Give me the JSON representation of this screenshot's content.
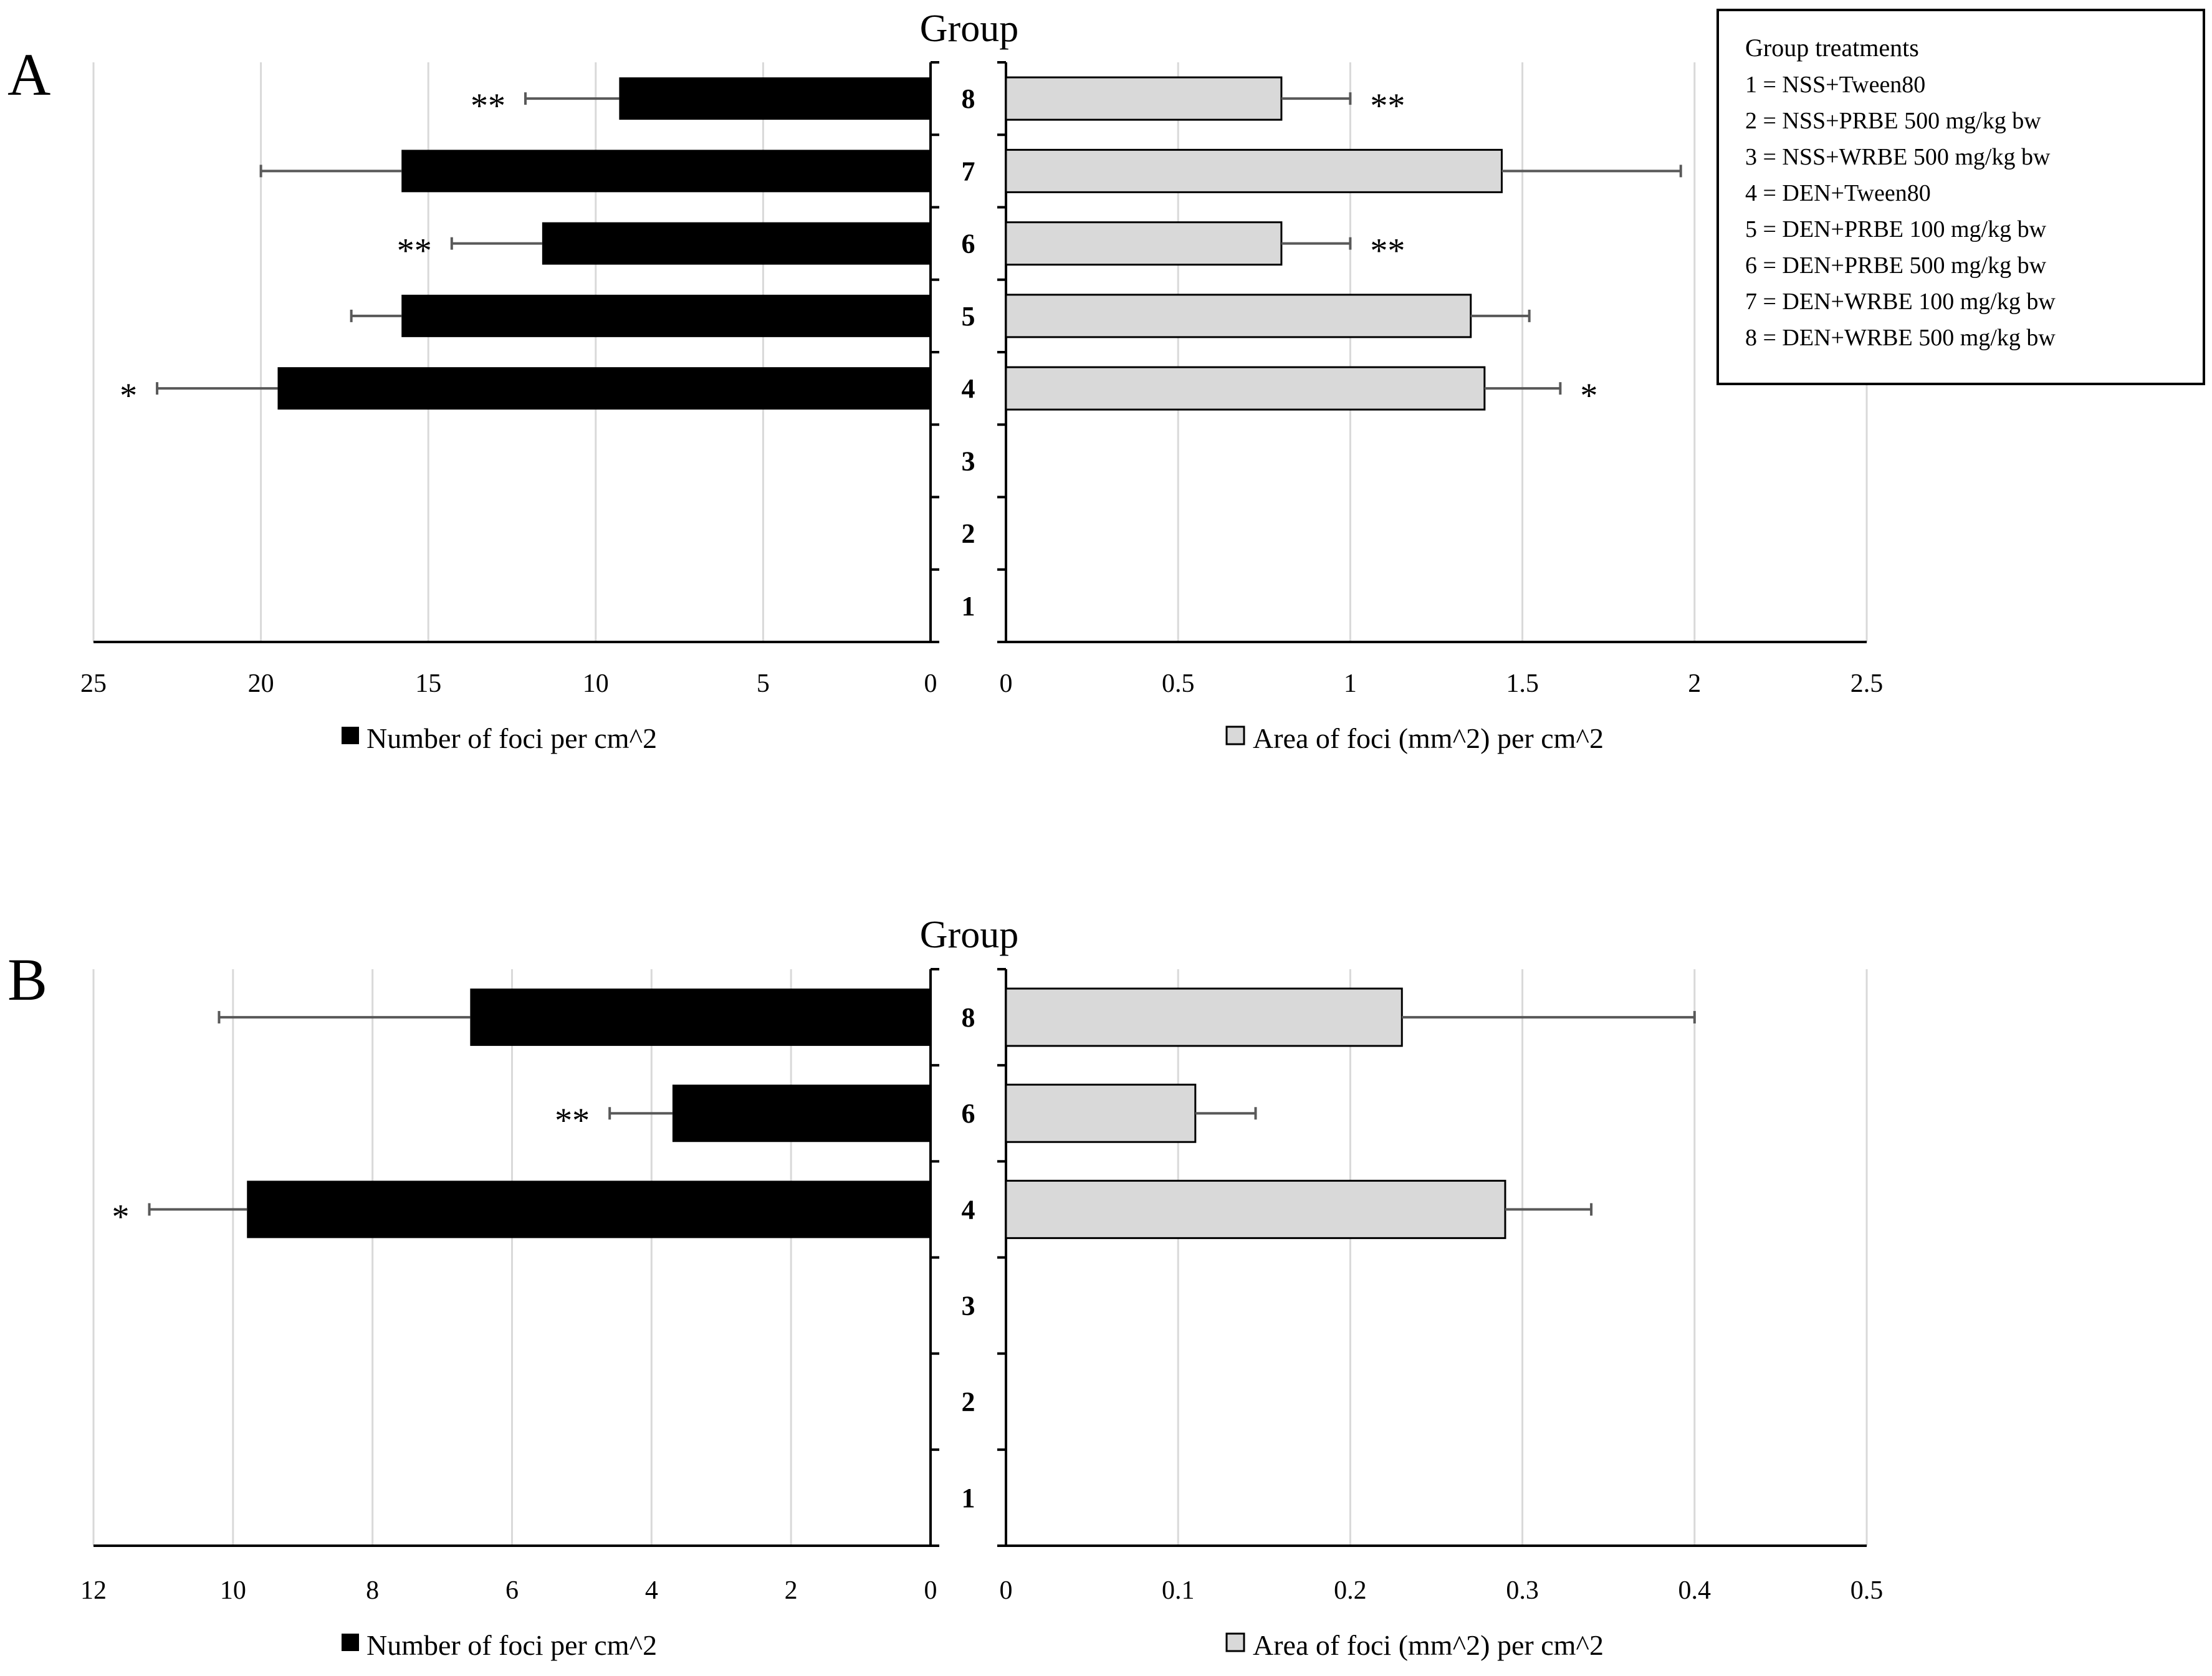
{
  "legend_box": {
    "title": "Group treatments",
    "lines": [
      "1 = NSS+Tween80",
      "2 = NSS+PRBE 500 mg/kg bw",
      "3 = NSS+WRBE 500 mg/kg bw",
      "4 = DEN+Tween80",
      "5 = DEN+PRBE 100 mg/kg bw",
      "6 = DEN+PRBE 500 mg/kg bw",
      "7 = DEN+WRBE 100 mg/kg bw",
      "8 = DEN+WRBE 500 mg/kg bw"
    ]
  },
  "colors": {
    "black_bar": "#000000",
    "gray_bar": "#d9d9d9",
    "grid": "#d9d9d9",
    "error_bar": "#595959"
  },
  "chart_data": [
    {
      "panel": "A",
      "type": "bar",
      "orientation": "horizontal-butterfly",
      "group_axis_title": "Group",
      "categories": [
        "1",
        "2",
        "3",
        "4",
        "5",
        "6",
        "7",
        "8"
      ],
      "left": {
        "legend": "Number of foci per cm^2",
        "color": "#000000",
        "xlim": [
          0,
          25
        ],
        "ticks": [
          "25",
          "20",
          "15",
          "10",
          "5",
          "0"
        ],
        "tick_values": [
          25,
          20,
          15,
          10,
          5,
          0
        ],
        "values": [
          null,
          null,
          null,
          19.5,
          15.8,
          11.6,
          15.8,
          9.3
        ],
        "errors": [
          null,
          null,
          null,
          3.6,
          1.5,
          2.7,
          4.2,
          2.8
        ],
        "significance": [
          "",
          "",
          "",
          "*",
          "",
          "**",
          "",
          "**"
        ]
      },
      "right": {
        "legend": "Area of foci (mm^2) per cm^2",
        "color": "#d9d9d9",
        "xlim": [
          0,
          2.5
        ],
        "ticks": [
          "0",
          "0.5",
          "1",
          "1.5",
          "2",
          "2.5"
        ],
        "tick_values": [
          0,
          0.5,
          1,
          1.5,
          2,
          2.5
        ],
        "values": [
          null,
          null,
          null,
          1.39,
          1.35,
          0.8,
          1.44,
          0.8
        ],
        "errors": [
          null,
          null,
          null,
          0.22,
          0.17,
          0.2,
          0.52,
          0.2
        ],
        "significance": [
          "",
          "",
          "",
          "*",
          "",
          "**",
          "",
          "**"
        ]
      }
    },
    {
      "panel": "B",
      "type": "bar",
      "orientation": "horizontal-butterfly",
      "group_axis_title": "Group",
      "categories": [
        "1",
        "2",
        "3",
        "4",
        "6",
        "8"
      ],
      "left": {
        "legend": "Number of foci per cm^2",
        "color": "#000000",
        "xlim": [
          0,
          12
        ],
        "ticks": [
          "12",
          "10",
          "8",
          "6",
          "4",
          "2",
          "0"
        ],
        "tick_values": [
          12,
          10,
          8,
          6,
          4,
          2,
          0
        ],
        "values": [
          null,
          null,
          null,
          9.8,
          3.7,
          6.6
        ],
        "errors": [
          null,
          null,
          null,
          1.4,
          0.9,
          3.6
        ],
        "significance": [
          "",
          "",
          "",
          "*",
          "**",
          ""
        ]
      },
      "right": {
        "legend": "Area of foci (mm^2) per cm^2",
        "color": "#d9d9d9",
        "xlim": [
          0,
          0.5
        ],
        "ticks": [
          "0",
          "0.1",
          "0.2",
          "0.3",
          "0.4",
          "0.5"
        ],
        "tick_values": [
          0,
          0.1,
          0.2,
          0.3,
          0.4,
          0.5
        ],
        "values": [
          null,
          null,
          null,
          0.29,
          0.11,
          0.23
        ],
        "errors": [
          null,
          null,
          null,
          0.05,
          0.035,
          0.17
        ],
        "significance": [
          "",
          "",
          "",
          "",
          "",
          ""
        ]
      }
    }
  ]
}
